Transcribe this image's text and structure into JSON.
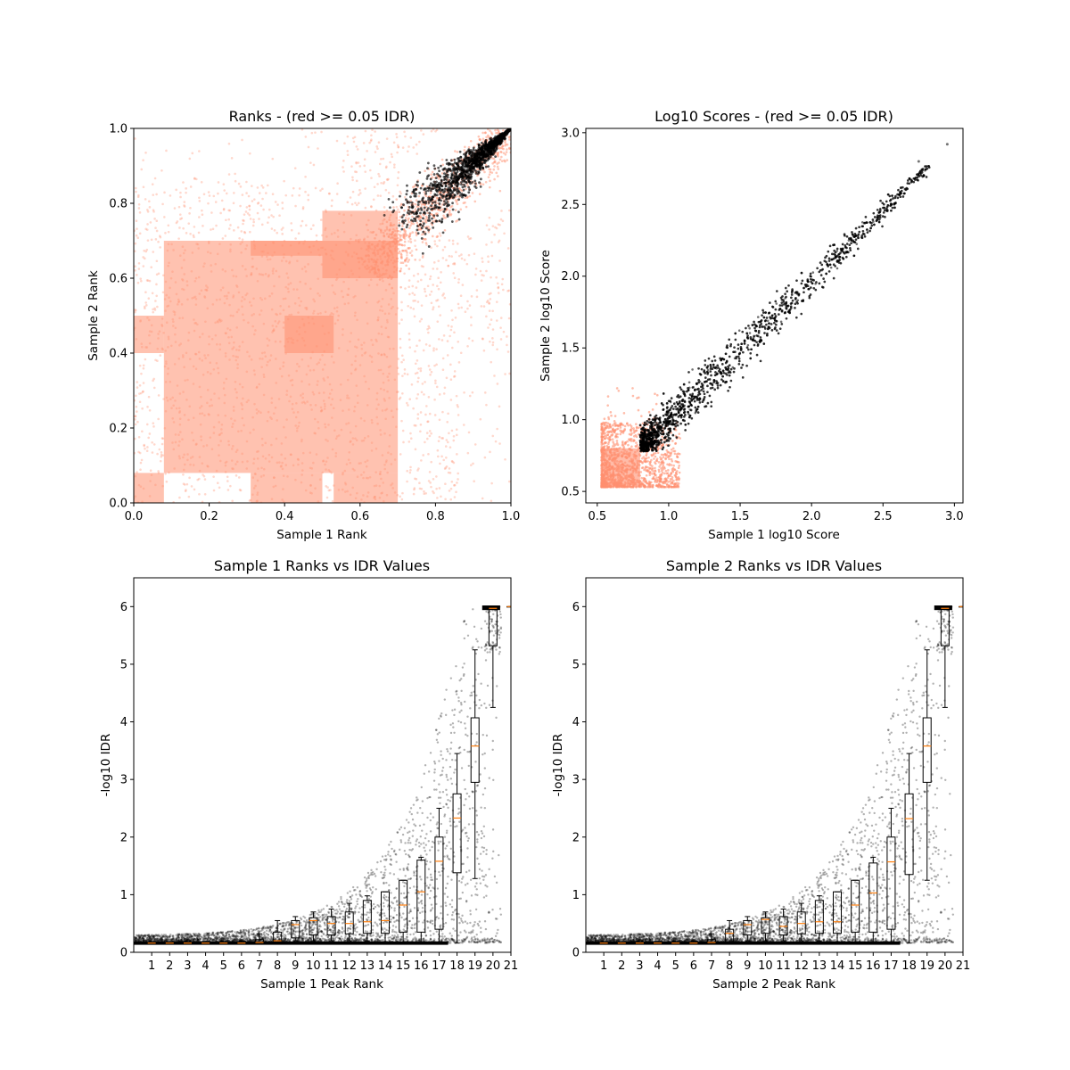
{
  "colors": {
    "pass": "#000000",
    "fail": "#ff9070",
    "median": "#ff7f0e"
  },
  "chart_data": [
    {
      "type": "scatter",
      "title": "Ranks - (red >= 0.05 IDR)",
      "xlabel": "Sample 1 Rank",
      "ylabel": "Sample 2 Rank",
      "xlim": [
        0,
        1
      ],
      "ylim": [
        0,
        1
      ],
      "xticks": [
        "0.0",
        "0.2",
        "0.4",
        "0.6",
        "0.8",
        "1.0"
      ],
      "yticks": [
        "0.0",
        "0.2",
        "0.4",
        "0.6",
        "0.8",
        "1.0"
      ],
      "grid": false,
      "series": [
        {
          "color": "fail",
          "blocks": [
            [
              0,
              0.08,
              0,
              0.08
            ],
            [
              0.4,
              0.53,
              0.4,
              0.5
            ],
            [
              0.31,
              0.5,
              0.66,
              0.7
            ],
            [
              0,
              0.08,
              0.4,
              0.5
            ],
            [
              0.08,
              0.7,
              0.08,
              0.7
            ],
            [
              0.5,
              0.7,
              0.6,
              0.78
            ],
            [
              0.31,
              0.5,
              0,
              0.08
            ],
            [
              0.53,
              0.7,
              0,
              0.08
            ]
          ]
        },
        {
          "color": "pass",
          "region": "upper-right leaf from (0.7, 0.72) to (1.0, 1.0)"
        }
      ]
    },
    {
      "type": "scatter",
      "title": "Log10 Scores - (red >= 0.05 IDR)",
      "xlabel": "Sample 1 log10 Score",
      "ylabel": "Sample 2 log10 Score",
      "xlim": [
        0.42,
        3.06
      ],
      "ylim": [
        0.42,
        3.03
      ],
      "xticks": [
        "0.5",
        "1.0",
        "1.5",
        "2.0",
        "2.5",
        "3.0"
      ],
      "yticks": [
        "0.5",
        "1.0",
        "1.5",
        "2.0",
        "2.5",
        "3.0"
      ],
      "grid": false,
      "series": [
        {
          "color": "fail",
          "region": "block from 0.53 to ~0.95 on both axes"
        },
        {
          "color": "pass",
          "trend": [
            [
              0.82,
              0.82
            ],
            [
              1.2,
              1.15
            ],
            [
              1.6,
              1.6
            ],
            [
              2.0,
              2.0
            ],
            [
              2.5,
              2.4
            ],
            [
              2.75,
              2.8
            ],
            [
              2.95,
              2.92
            ]
          ]
        }
      ]
    },
    {
      "type": "box",
      "title": "Sample 1 Ranks vs IDR Values",
      "xlabel": "Sample 1 Peak Rank",
      "ylabel": "-log10 IDR",
      "xlim": [
        0,
        21
      ],
      "ylim": [
        0,
        6.5
      ],
      "xticks": [
        "1",
        "2",
        "3",
        "4",
        "5",
        "6",
        "7",
        "8",
        "9",
        "10",
        "11",
        "12",
        "13",
        "14",
        "15",
        "16",
        "17",
        "18",
        "19",
        "20",
        "21"
      ],
      "yticks": [
        "0",
        "1",
        "2",
        "3",
        "4",
        "5",
        "6"
      ],
      "grid": false,
      "boxes": [
        [
          0.16,
          0.16,
          0.16,
          0.16,
          0.16
        ],
        [
          0.16,
          0.16,
          0.16,
          0.16,
          0.16
        ],
        [
          0.16,
          0.16,
          0.16,
          0.16,
          0.16
        ],
        [
          0.16,
          0.16,
          0.16,
          0.16,
          0.16
        ],
        [
          0.16,
          0.16,
          0.16,
          0.16,
          0.16
        ],
        [
          0.16,
          0.16,
          0.16,
          0.17,
          0.2
        ],
        [
          0.16,
          0.16,
          0.17,
          0.22,
          0.32
        ],
        [
          0.16,
          0.17,
          0.2,
          0.35,
          0.55
        ],
        [
          0.2,
          0.25,
          0.48,
          0.55,
          0.62
        ],
        [
          0.2,
          0.3,
          0.55,
          0.6,
          0.7
        ],
        [
          0.2,
          0.3,
          0.5,
          0.62,
          0.75
        ],
        [
          0.2,
          0.32,
          0.5,
          0.7,
          0.85
        ],
        [
          0.2,
          0.33,
          0.53,
          0.9,
          0.98
        ],
        [
          0.18,
          0.33,
          0.55,
          1.05,
          1.05
        ],
        [
          0.16,
          0.35,
          0.82,
          1.25,
          1.25
        ],
        [
          0.16,
          0.35,
          1.05,
          1.6,
          1.65
        ],
        [
          0.16,
          0.4,
          1.58,
          2.0,
          2.5
        ],
        [
          0.16,
          1.38,
          2.33,
          2.75,
          3.45
        ],
        [
          1.28,
          2.95,
          3.58,
          4.07,
          5.25
        ],
        [
          4.25,
          5.32,
          5.97,
          6.0,
          6.0
        ],
        [
          6.0,
          6.0,
          6.0,
          6.0,
          6.0
        ]
      ]
    },
    {
      "type": "box",
      "title": "Sample 2 Ranks vs IDR Values",
      "xlabel": "Sample 2 Peak Rank",
      "ylabel": "-log10 IDR",
      "xlim": [
        0,
        21
      ],
      "ylim": [
        0,
        6.5
      ],
      "xticks": [
        "1",
        "2",
        "3",
        "4",
        "5",
        "6",
        "7",
        "8",
        "9",
        "10",
        "11",
        "12",
        "13",
        "14",
        "15",
        "16",
        "17",
        "18",
        "19",
        "20",
        "21"
      ],
      "yticks": [
        "0",
        "1",
        "2",
        "3",
        "4",
        "5",
        "6"
      ],
      "grid": false,
      "boxes": [
        [
          0.16,
          0.16,
          0.16,
          0.16,
          0.16
        ],
        [
          0.16,
          0.16,
          0.16,
          0.16,
          0.16
        ],
        [
          0.16,
          0.16,
          0.16,
          0.16,
          0.16
        ],
        [
          0.16,
          0.16,
          0.16,
          0.16,
          0.16
        ],
        [
          0.16,
          0.16,
          0.16,
          0.16,
          0.16
        ],
        [
          0.16,
          0.16,
          0.16,
          0.17,
          0.2
        ],
        [
          0.16,
          0.16,
          0.17,
          0.22,
          0.32
        ],
        [
          0.16,
          0.17,
          0.33,
          0.4,
          0.55
        ],
        [
          0.2,
          0.3,
          0.48,
          0.55,
          0.62
        ],
        [
          0.2,
          0.33,
          0.57,
          0.6,
          0.7
        ],
        [
          0.2,
          0.3,
          0.45,
          0.62,
          0.75
        ],
        [
          0.2,
          0.32,
          0.5,
          0.7,
          0.85
        ],
        [
          0.2,
          0.33,
          0.53,
          0.9,
          0.98
        ],
        [
          0.18,
          0.33,
          0.53,
          1.05,
          1.05
        ],
        [
          0.16,
          0.35,
          0.82,
          1.25,
          1.25
        ],
        [
          0.16,
          0.35,
          1.03,
          1.55,
          1.65
        ],
        [
          0.16,
          0.4,
          1.57,
          2.0,
          2.5
        ],
        [
          0.16,
          1.35,
          2.32,
          2.75,
          3.45
        ],
        [
          1.25,
          2.95,
          3.58,
          4.07,
          5.25
        ],
        [
          4.25,
          5.32,
          5.97,
          6.0,
          6.0
        ],
        [
          6.0,
          6.0,
          6.0,
          6.0,
          6.0
        ]
      ]
    }
  ]
}
